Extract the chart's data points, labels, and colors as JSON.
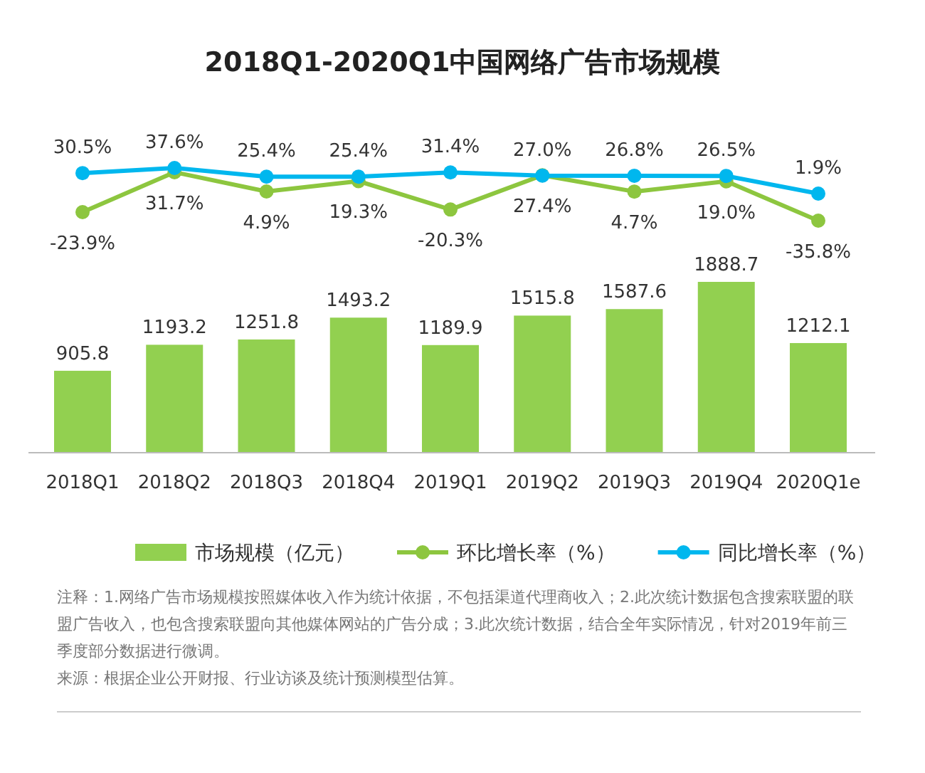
{
  "chart_data": [
    {
      "type": "line",
      "title": "2018Q1-2020Q1中国网络广告市场规模",
      "categories": [
        null,
        null,
        null,
        null,
        null,
        null,
        null,
        null,
        null
      ],
      "series": [
        {
          "name": "环比增长率（%）",
          "color": "#8dc63f",
          "values": [
            -23.9,
            31.7,
            4.9,
            19.3,
            -20.3,
            27.4,
            4.7,
            19.0,
            -35.8
          ],
          "value_labels": [
            "-23.9%",
            "31.7%",
            "4.9%",
            "19.3%",
            "-20.3%",
            "27.4%",
            "4.7%",
            "19.0%",
            "-35.8%"
          ]
        },
        {
          "name": "同比增长率（%）",
          "color": "#00b7ee",
          "values": [
            30.5,
            37.6,
            25.4,
            25.4,
            31.4,
            27.0,
            26.8,
            26.5,
            1.9
          ],
          "value_labels": [
            "30.5%",
            "37.6%",
            "25.4%",
            "25.4%",
            "31.4%",
            "27.0%",
            "26.8%",
            "26.5%",
            "1.9%"
          ]
        }
      ],
      "marker": "circle",
      "legend": "bottom",
      "grid": false
    },
    {
      "type": "bar",
      "categories": [
        "2018Q1",
        "2018Q2",
        "2018Q3",
        "2018Q4",
        "2019Q1",
        "2019Q2",
        "2019Q3",
        "2019Q4",
        "2020Q1e"
      ],
      "series": [
        {
          "name": "市场规模（亿元）",
          "color": "#92d050",
          "values": [
            905.8,
            1193.2,
            1251.8,
            1493.2,
            1189.9,
            1515.8,
            1587.6,
            1888.7,
            1212.1
          ]
        }
      ],
      "data_labels": true,
      "legend": "bottom",
      "grid": false,
      "annotations": [
        "注释：1.网络广告市场规模按照媒体收入作为统计依据，不包括渠道代理商收入；2.此次统计数据包含搜索联盟的联盟广告收入，也包含搜索联盟向其他媒体网站的广告分成；3.此次统计数据，结合全年实际情况，针对2019年前三季度部分数据进行微调。",
        "来源：根据企业公开财报、行业访谈及统计预测模型估算。"
      ]
    }
  ]
}
